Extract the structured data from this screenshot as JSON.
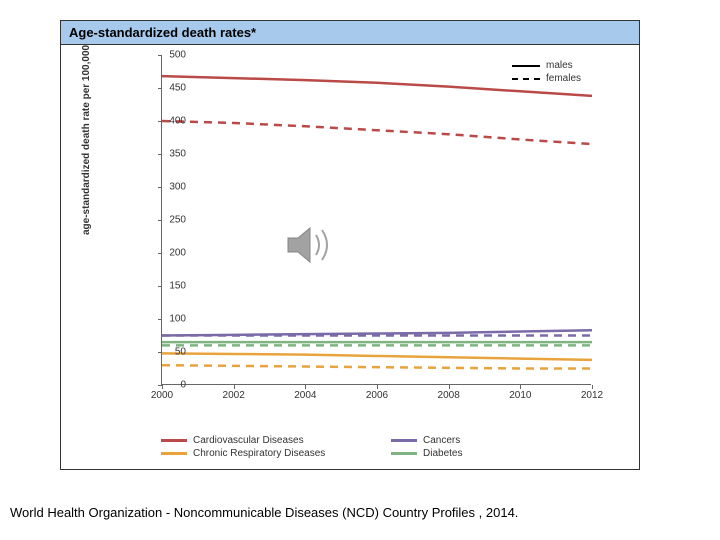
{
  "title": "Age-standardized death rates*",
  "y_axis_label": "age-standardized death rate per 100,000",
  "chart": {
    "type": "line",
    "xlim": [
      2000,
      2012
    ],
    "ylim": [
      0,
      500
    ],
    "ytick_step": 50,
    "xtick_step": 2,
    "background_color": "#ffffff",
    "axis_color": "#666666",
    "tick_fontsize": 10,
    "label_fontsize": 10,
    "x_ticks": [
      2000,
      2002,
      2004,
      2006,
      2008,
      2010,
      2012
    ],
    "y_ticks": [
      0,
      50,
      100,
      150,
      200,
      250,
      300,
      350,
      400,
      450,
      500
    ],
    "series": [
      {
        "name": "Cardiovascular Diseases",
        "gender": "males",
        "color": "#b94a48",
        "dash": "solid",
        "width": 2.5,
        "values": [
          [
            2000,
            468
          ],
          [
            2002,
            465
          ],
          [
            2004,
            462
          ],
          [
            2006,
            458
          ],
          [
            2008,
            452
          ],
          [
            2010,
            445
          ],
          [
            2012,
            438
          ]
        ]
      },
      {
        "name": "Cardiovascular Diseases",
        "gender": "females",
        "color": "#b94a48",
        "dash": "dashed",
        "width": 2.5,
        "values": [
          [
            2000,
            400
          ],
          [
            2002,
            397
          ],
          [
            2004,
            392
          ],
          [
            2006,
            386
          ],
          [
            2008,
            380
          ],
          [
            2010,
            372
          ],
          [
            2012,
            365
          ]
        ]
      },
      {
        "name": "Cancers",
        "gender": "males",
        "color": "#7a6aa8",
        "dash": "solid",
        "width": 2.5,
        "values": [
          [
            2000,
            75
          ],
          [
            2002,
            76
          ],
          [
            2004,
            77
          ],
          [
            2006,
            78
          ],
          [
            2008,
            79
          ],
          [
            2010,
            81
          ],
          [
            2012,
            83
          ]
        ]
      },
      {
        "name": "Cancers",
        "gender": "females",
        "color": "#7a6aa8",
        "dash": "dashed",
        "width": 2.5,
        "values": [
          [
            2000,
            75
          ],
          [
            2002,
            75
          ],
          [
            2004,
            75
          ],
          [
            2006,
            75
          ],
          [
            2008,
            75
          ],
          [
            2010,
            75
          ],
          [
            2012,
            75
          ]
        ]
      },
      {
        "name": "Diabetes",
        "gender": "males",
        "color": "#7fb37f",
        "dash": "solid",
        "width": 2.5,
        "values": [
          [
            2000,
            65
          ],
          [
            2002,
            65
          ],
          [
            2004,
            65
          ],
          [
            2006,
            65
          ],
          [
            2008,
            65
          ],
          [
            2010,
            65
          ],
          [
            2012,
            65
          ]
        ]
      },
      {
        "name": "Diabetes",
        "gender": "females",
        "color": "#7fb37f",
        "dash": "dashed",
        "width": 2.5,
        "values": [
          [
            2000,
            60
          ],
          [
            2002,
            60
          ],
          [
            2004,
            60
          ],
          [
            2006,
            60
          ],
          [
            2008,
            60
          ],
          [
            2010,
            60
          ],
          [
            2012,
            60
          ]
        ]
      },
      {
        "name": "Chronic Respiratory Diseases",
        "gender": "males",
        "color": "#e8a33d",
        "dash": "solid",
        "width": 2.5,
        "values": [
          [
            2000,
            48
          ],
          [
            2002,
            47
          ],
          [
            2004,
            46
          ],
          [
            2006,
            44
          ],
          [
            2008,
            42
          ],
          [
            2010,
            40
          ],
          [
            2012,
            38
          ]
        ]
      },
      {
        "name": "Chronic Respiratory Diseases",
        "gender": "females",
        "color": "#e8a33d",
        "dash": "dashed",
        "width": 2.5,
        "values": [
          [
            2000,
            30
          ],
          [
            2002,
            29
          ],
          [
            2004,
            28
          ],
          [
            2006,
            27
          ],
          [
            2008,
            26
          ],
          [
            2010,
            25
          ],
          [
            2012,
            25
          ]
        ]
      }
    ]
  },
  "gender_legend": {
    "males": "males",
    "females": "females"
  },
  "disease_legend": [
    {
      "label": "Cardiovascular Diseases",
      "color": "#b94a48"
    },
    {
      "label": "Cancers",
      "color": "#7a6aa8"
    },
    {
      "label": "Chronic Respiratory Diseases",
      "color": "#e8a33d"
    },
    {
      "label": "Diabetes",
      "color": "#7fb37f"
    }
  ],
  "citation": "World Health Organization - Noncommunicable Diseases (NCD) Country Profiles , 2014.",
  "title_bar_bg": "#a6c9ec"
}
